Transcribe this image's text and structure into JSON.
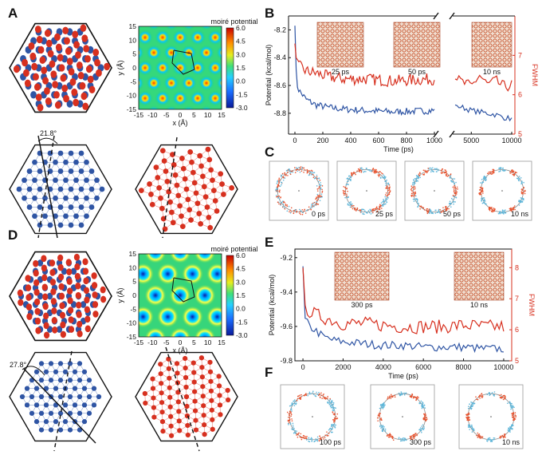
{
  "panels": {
    "A": "A",
    "B": "B",
    "C": "C",
    "D": "D",
    "E": "E",
    "F": "F"
  },
  "colors": {
    "blue": "#2f55a4",
    "red": "#d7301f",
    "cyan": "#5fb6d9",
    "orange": "#e8532e",
    "ringGray": "#8a8a8a"
  },
  "moire_A": {
    "title": "moiré potential",
    "xlabel": "x (Å)",
    "ylabel": "y (Å)",
    "ticks": [
      "-15",
      "-10",
      "-5",
      "0",
      "5",
      "10",
      "15"
    ],
    "colorbar": [
      "6.0",
      "4.5",
      "3.0",
      "1.5",
      "0.0",
      "-1.5",
      "-3.0"
    ]
  },
  "moire_D": {
    "title": "moiré potential",
    "xlabel": "x (Å)",
    "ylabel": "y (Å)",
    "ticks": [
      "-15",
      "-10",
      "-5",
      "0",
      "5",
      "10",
      "15"
    ],
    "colorbar": [
      "6.0",
      "4.5",
      "3.0",
      "1.5",
      "0.0",
      "-1.5",
      "-3.0"
    ]
  },
  "angles": {
    "A": "21.8°",
    "D": "27.8°"
  },
  "chart_data": [
    {
      "panel": "B",
      "type": "line",
      "xlabel": "Time (ps)",
      "ylabel": "Potential (kcal/mol)",
      "y2label": "FWHM",
      "x_ticks_left": [
        "0",
        "200",
        "400",
        "600",
        "800",
        "1000"
      ],
      "x_ticks_right": [
        "5000",
        "10000"
      ],
      "y_ticks": [
        "-8.2",
        "-8.4",
        "-8.6",
        "-8.8"
      ],
      "y2_ticks": [
        "7",
        "6",
        "5"
      ],
      "ylim": [
        -8.95,
        -8.1
      ],
      "y2lim": [
        5,
        8
      ],
      "x_break": [
        1000,
        3000
      ],
      "series": [
        {
          "name": "Potential",
          "color": "#2f55a4",
          "segment1": {
            "x": [
              0,
              10,
              20,
              40,
              80,
              150,
              250,
              350,
              500,
              700,
              1000
            ],
            "y": [
              -8.17,
              -8.52,
              -8.62,
              -8.65,
              -8.7,
              -8.74,
              -8.76,
              -8.77,
              -8.78,
              -8.79,
              -8.78
            ]
          },
          "segment2": {
            "x": [
              3000,
              4000,
              5000,
              6000,
              7000,
              8000,
              9000,
              10000
            ],
            "y": [
              -8.74,
              -8.76,
              -8.78,
              -8.79,
              -8.8,
              -8.81,
              -8.83,
              -8.84
            ]
          }
        },
        {
          "name": "FWHM",
          "color": "#d7301f",
          "segment1": {
            "x": [
              0,
              10,
              20,
              40,
              80,
              150,
              250,
              350,
              500,
              700,
              1000
            ],
            "y": [
              7.3,
              6.9,
              6.75,
              6.7,
              6.6,
              6.55,
              6.45,
              6.4,
              6.4,
              6.35,
              6.4
            ]
          },
          "segment2": {
            "x": [
              3000,
              4000,
              5000,
              6000,
              7000,
              8000,
              9000,
              10000
            ],
            "y": [
              6.4,
              6.3,
              6.2,
              6.5,
              6.25,
              6.35,
              6.2,
              6.25
            ]
          }
        }
      ],
      "insets": [
        "25 ps",
        "50 ps",
        "10 ns"
      ]
    },
    {
      "panel": "E",
      "type": "line",
      "xlabel": "Time (ps)",
      "ylabel": "Potential (kcal/mol)",
      "y2label": "FWHM",
      "x_ticks": [
        "0",
        "2000",
        "4000",
        "6000",
        "8000",
        "10000"
      ],
      "y_ticks": [
        "-9.2",
        "-9.4",
        "-9.6",
        "-9.8"
      ],
      "y2_ticks": [
        "8",
        "7",
        "6",
        "5"
      ],
      "xlim": [
        -400,
        10400
      ],
      "ylim": [
        -9.8,
        -9.15
      ],
      "y2lim": [
        5,
        8.6
      ],
      "series": [
        {
          "name": "Potential",
          "color": "#2f55a4",
          "x": [
            0,
            100,
            300,
            600,
            1000,
            1500,
            2000,
            3000,
            4000,
            5000,
            6000,
            7000,
            8000,
            9000,
            10000
          ],
          "y": [
            -9.25,
            -9.55,
            -9.6,
            -9.62,
            -9.66,
            -9.68,
            -9.69,
            -9.7,
            -9.71,
            -9.71,
            -9.72,
            -9.72,
            -9.72,
            -9.73,
            -9.73
          ]
        },
        {
          "name": "FWHM",
          "color": "#d7301f",
          "x": [
            0,
            100,
            300,
            600,
            1000,
            1500,
            2000,
            3000,
            4000,
            5000,
            6000,
            7000,
            8000,
            9000,
            10000
          ],
          "y": [
            8.0,
            6.8,
            6.6,
            6.5,
            6.4,
            6.3,
            6.2,
            6.2,
            6.15,
            6.1,
            6.1,
            6.1,
            6.15,
            6.1,
            6.1
          ]
        }
      ],
      "insets": [
        "300 ps",
        "10 ns"
      ]
    }
  ],
  "rings_C": [
    "0 ps",
    "25 ps",
    "50 ps",
    "10 ns"
  ],
  "rings_F": [
    "100 ps",
    "300 ps",
    "10 ns"
  ]
}
